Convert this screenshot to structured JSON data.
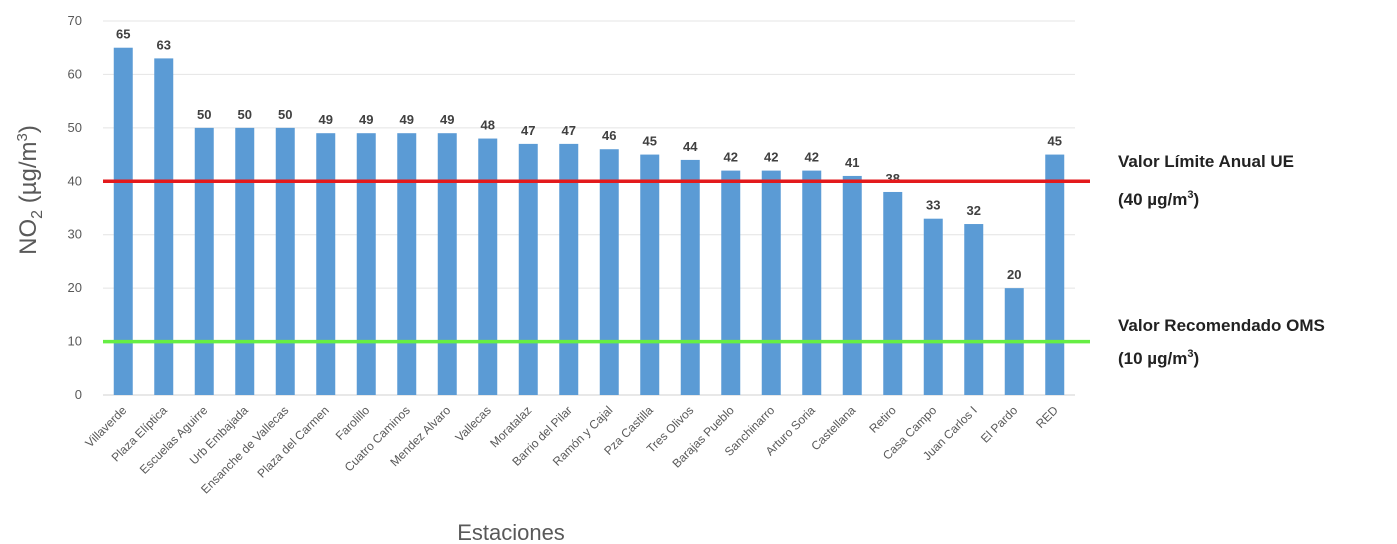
{
  "chart_data": {
    "type": "bar",
    "title": "",
    "xlabel": "Estaciones",
    "ylabel": {
      "main": "NO",
      "sub": "2",
      "rest": " (µg/m",
      "sup": "3",
      "end": ")"
    },
    "ylim": [
      0,
      70
    ],
    "yticks": [
      0,
      10,
      20,
      30,
      40,
      50,
      60,
      70
    ],
    "grid": true,
    "categories": [
      "Villaverde",
      "Plaza Elíptica",
      "Escuelas Aguirre",
      "Urb Embajada",
      "Ensanche de Vallecas",
      "Plaza del Carmen",
      "Farolillo",
      "Cuatro Caminos",
      "Mendez Alvaro",
      "Vallecas",
      "Moratalaz",
      "Barrio del Pilar",
      "Ramón y Cajal",
      "Pza Castilla",
      "Tres Olivos",
      "Barajas Pueblo",
      "Sanchinarro",
      "Arturo Soria",
      "Castellana",
      "Retiro",
      "Casa Campo",
      "Juan Carlos I",
      "El Pardo",
      "RED"
    ],
    "series": [
      {
        "values": [
          65,
          63,
          50,
          50,
          50,
          49,
          49,
          49,
          49,
          48,
          47,
          47,
          46,
          45,
          44,
          42,
          42,
          42,
          41,
          38,
          33,
          32,
          20,
          45
        ],
        "color": "#5b9bd5"
      }
    ],
    "reference_lines": [
      {
        "value": 40,
        "color": "#e31a1c",
        "label_line1": "Valor Límite Anual UE",
        "label_line2": {
          "pre": "(40 µg/m",
          "sup": "3",
          "post": ")"
        }
      },
      {
        "value": 10,
        "color": "#66ee44",
        "label_line1": "Valor Recomendado OMS",
        "label_line2": {
          "pre": "(10 µg/m",
          "sup": "3",
          "post": ")"
        }
      }
    ]
  }
}
